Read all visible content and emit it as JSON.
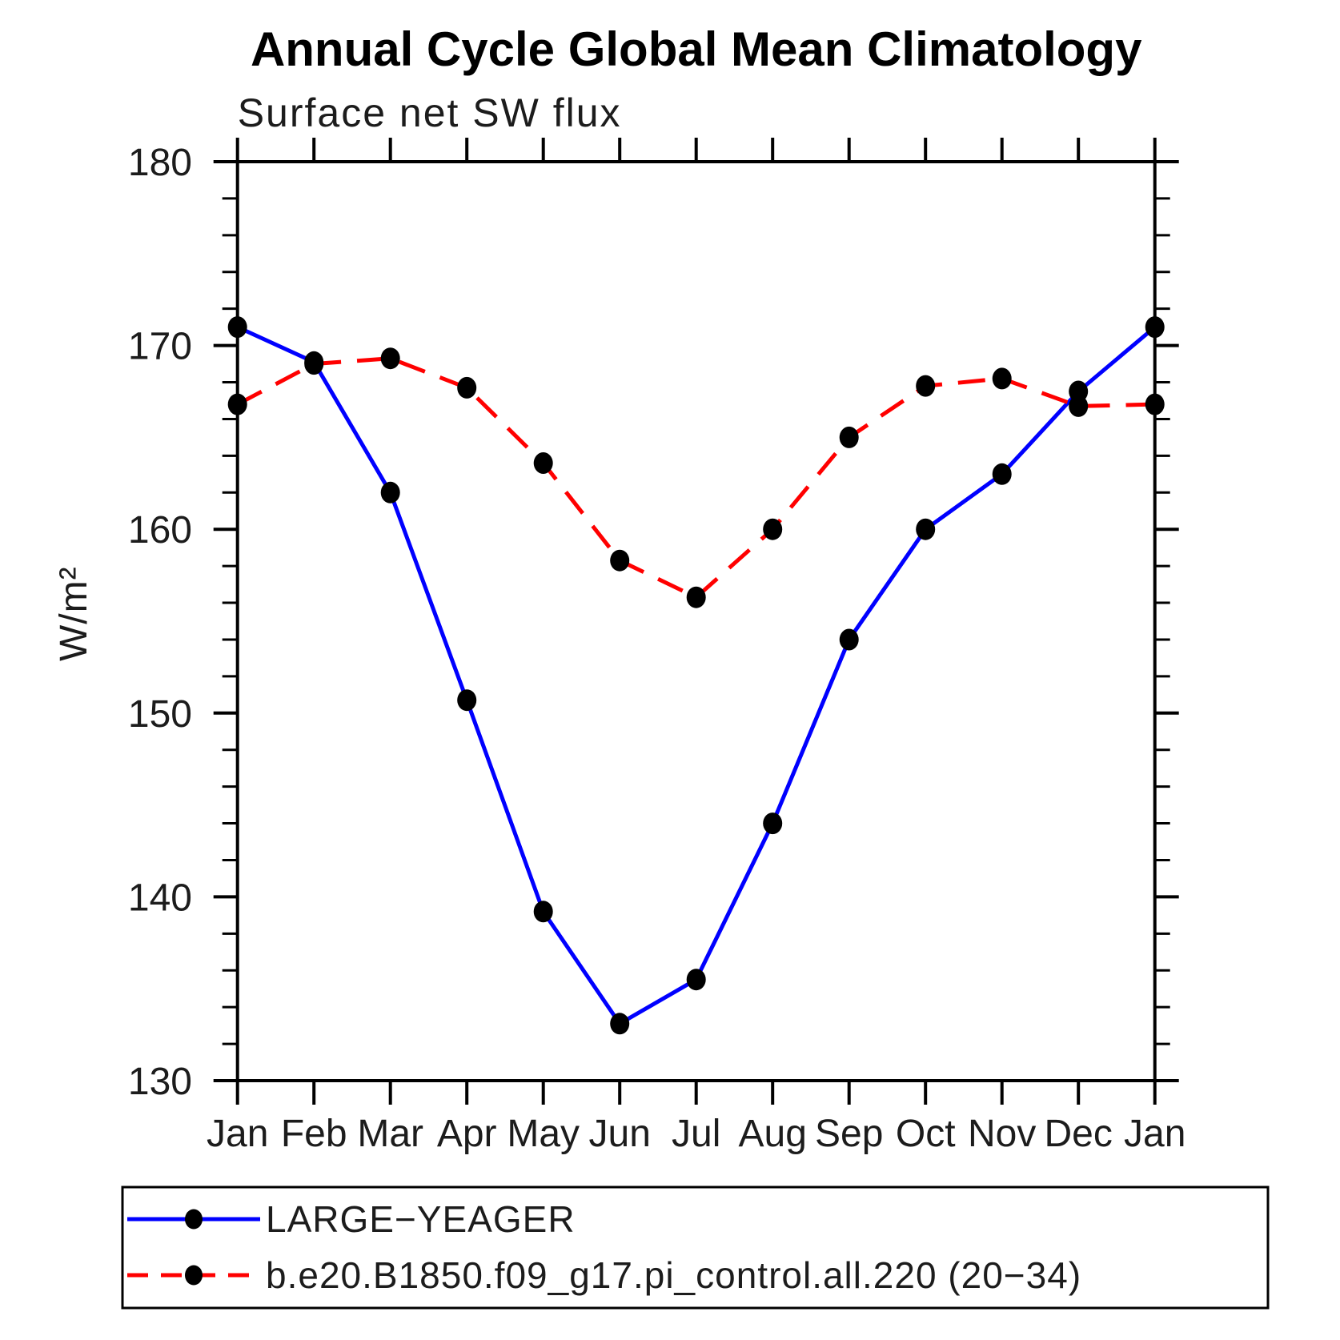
{
  "page": {
    "background": "#ffffff"
  },
  "chart_data": {
    "type": "line",
    "title": "Annual Cycle Global Mean Climatology",
    "subtitle": "Surface net SW flux",
    "ylabel": "W/m²",
    "categories": [
      "Jan",
      "Feb",
      "Mar",
      "Apr",
      "May",
      "Jun",
      "Jul",
      "Aug",
      "Sep",
      "Oct",
      "Nov",
      "Dec",
      "Jan"
    ],
    "series": [
      {
        "name": "LARGE−YEAGER",
        "color": "#0000ff",
        "style": "solid",
        "marker": "black-dot",
        "values": [
          171.0,
          169.1,
          162.0,
          150.7,
          139.2,
          133.1,
          135.5,
          144.0,
          154.0,
          160.0,
          163.0,
          167.5,
          171.0
        ]
      },
      {
        "name": "b.e20.B1850.f09_g17.pi_control.all.220 (20−34)",
        "color": "#ff0000",
        "style": "dashed",
        "marker": "black-dot",
        "values": [
          166.8,
          169.0,
          169.3,
          167.7,
          163.6,
          158.3,
          156.3,
          160.0,
          165.0,
          167.8,
          168.2,
          166.7,
          166.8
        ]
      }
    ],
    "ylim": [
      130,
      180
    ],
    "ytick_major": 10,
    "ytick_minor": 2,
    "ytick_labels": [
      "130",
      "140",
      "150",
      "160",
      "170",
      "180"
    ],
    "marker_color": "#000000",
    "axis_color": "#000000",
    "grid": false,
    "legend_position": "bottom"
  }
}
